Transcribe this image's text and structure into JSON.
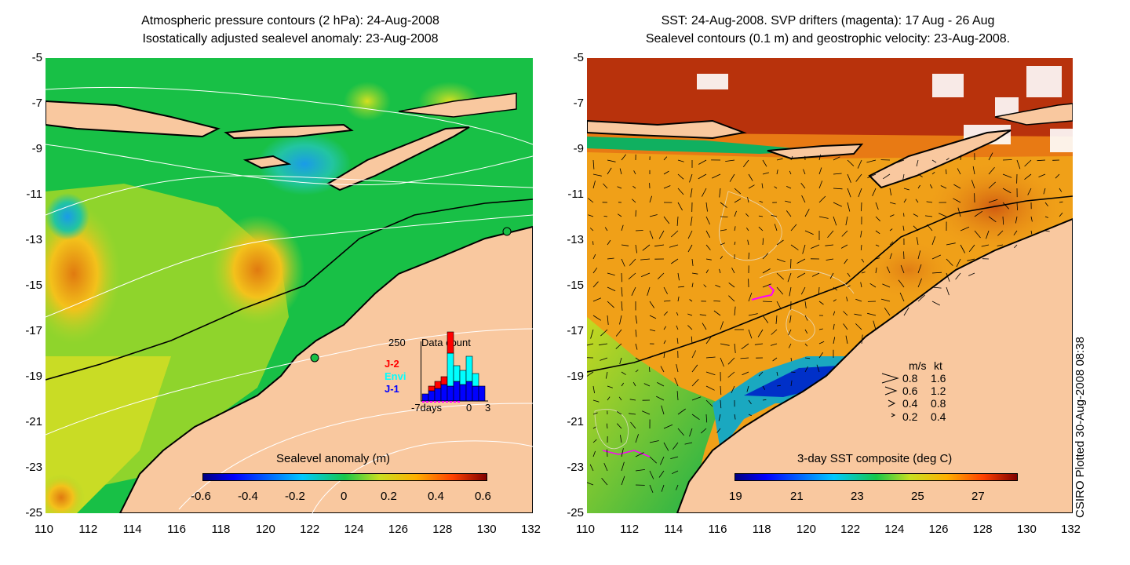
{
  "left_panel": {
    "title_line1": "Atmospheric pressure contours (2 hPa): 24-Aug-2008",
    "title_line2": "Isostatically adjusted sealevel anomaly: 23-Aug-2008",
    "colorbar_label": "Sealevel anomaly (m)",
    "colorbar_ticks": [
      "-0.6",
      "-0.4",
      "-0.2",
      "0",
      "0.2",
      "0.4",
      "0.6"
    ],
    "inset": {
      "max_label": "250",
      "title": "Data count",
      "legend": [
        "J-2",
        "Envi",
        "J-1"
      ],
      "x_ticks": [
        "-7days",
        "0",
        "3"
      ]
    }
  },
  "right_panel": {
    "title_line1": "SST: 24-Aug-2008. SVP drifters (magenta): 17 Aug - 26 Aug",
    "title_line2": "Sealevel contours (0.1 m) and geostrophic velocity: 23-Aug-2008.",
    "colorbar_label": "3-day SST composite (deg C)",
    "colorbar_ticks": [
      "19",
      "21",
      "23",
      "25",
      "27"
    ],
    "speed_legend": {
      "header_ms": "m/s",
      "header_kt": "kt",
      "rows": [
        {
          "ms": "0.8",
          "kt": "1.6"
        },
        {
          "ms": "0.6",
          "kt": "1.2"
        },
        {
          "ms": "0.4",
          "kt": "0.8"
        },
        {
          "ms": "0.2",
          "kt": "0.4"
        }
      ]
    }
  },
  "axes": {
    "lat_ticks": [
      "-5",
      "-7",
      "-9",
      "-11",
      "-13",
      "-15",
      "-17",
      "-19",
      "-21",
      "-23",
      "-25"
    ],
    "lon_ticks": [
      "110",
      "112",
      "114",
      "116",
      "118",
      "120",
      "122",
      "124",
      "126",
      "128",
      "130",
      "132"
    ]
  },
  "side_text": "CSIRO Plotted 30-Aug-2008 08:38",
  "colors": {
    "land": "#f9c89f",
    "ocean_green": "#10b84c",
    "sst_orange": "#f0a018"
  }
}
